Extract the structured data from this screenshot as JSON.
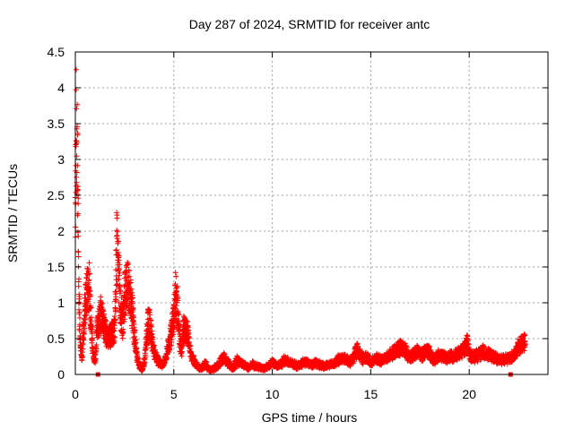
{
  "chart_data": {
    "type": "scatter",
    "title": "Day 287 of 2024, SRMTID for receiver antc",
    "xlabel": "GPS time / hours",
    "ylabel": "SRMTID / TECUs",
    "xlim": [
      0,
      24
    ],
    "ylim": [
      0,
      4.5
    ],
    "xticks": [
      0,
      5,
      10,
      15,
      20
    ],
    "yticks": [
      0,
      0.5,
      1,
      1.5,
      2,
      2.5,
      3,
      3.5,
      4,
      4.5
    ],
    "xtick_labels": [
      "0",
      "5",
      "10",
      "15",
      "20"
    ],
    "ytick_labels": [
      "0",
      "0.5",
      "1",
      "1.5",
      "2",
      "2.5",
      "3",
      "3.5",
      "4",
      "4.5"
    ],
    "grid": true,
    "marker": "plus",
    "series_color": "#ff0000",
    "envelope_x": [
      0.0,
      0.05,
      0.1,
      0.15,
      0.2,
      0.25,
      0.35,
      0.5,
      0.6,
      0.7,
      0.8,
      0.9,
      1.0,
      1.1,
      1.2,
      1.3,
      1.4,
      1.5,
      1.6,
      1.7,
      1.8,
      1.9,
      2.0,
      2.1,
      2.2,
      2.3,
      2.4,
      2.5,
      2.6,
      2.7,
      2.8,
      2.9,
      3.0,
      3.1,
      3.2,
      3.3,
      3.4,
      3.5,
      3.6,
      3.7,
      3.8,
      3.9,
      4.0,
      4.1,
      4.2,
      4.3,
      4.4,
      4.5,
      4.6,
      4.7,
      4.8,
      4.9,
      5.0,
      5.1,
      5.2,
      5.3,
      5.4,
      5.5,
      5.6,
      5.7,
      5.8,
      5.9,
      6.0,
      6.1,
      6.2,
      6.3,
      6.4,
      6.5,
      6.6,
      6.8,
      7.0,
      7.2,
      7.5,
      7.8,
      8.0,
      8.2,
      8.5,
      8.8,
      9.0,
      9.3,
      9.6,
      10.0,
      10.3,
      10.6,
      11.0,
      11.3,
      11.6,
      12.0,
      12.3,
      12.6,
      13.0,
      13.3,
      13.6,
      14.0,
      14.3,
      14.6,
      14.8,
      15.0,
      15.3,
      15.6,
      16.0,
      16.3,
      16.6,
      17.0,
      17.3,
      17.6,
      17.9,
      18.2,
      18.5,
      18.8,
      19.1,
      19.4,
      19.7,
      19.9,
      20.1,
      20.4,
      20.7,
      21.0,
      21.3,
      21.6,
      21.9,
      22.1,
      22.3,
      22.5,
      22.7,
      22.85
    ],
    "envelope_y": [
      3.2,
      4.4,
      4.2,
      2.3,
      1.2,
      0.6,
      0.3,
      1.3,
      1.5,
      1.62,
      1.0,
      0.35,
      0.25,
      0.8,
      0.95,
      1.1,
      1.0,
      0.8,
      0.7,
      0.65,
      0.7,
      0.75,
      0.8,
      2.3,
      1.8,
      1.2,
      0.9,
      1.4,
      1.65,
      1.5,
      1.4,
      1.1,
      0.7,
      0.4,
      0.2,
      0.12,
      0.1,
      0.2,
      0.6,
      1.0,
      0.85,
      0.6,
      0.4,
      0.3,
      0.25,
      0.2,
      0.18,
      0.2,
      0.3,
      0.5,
      0.6,
      0.85,
      1.0,
      1.5,
      1.2,
      0.6,
      0.45,
      0.85,
      0.8,
      0.75,
      0.5,
      0.3,
      0.25,
      0.2,
      0.15,
      0.12,
      0.12,
      0.15,
      0.2,
      0.08,
      0.1,
      0.15,
      0.3,
      0.2,
      0.1,
      0.25,
      0.18,
      0.12,
      0.18,
      0.14,
      0.1,
      0.22,
      0.15,
      0.25,
      0.2,
      0.15,
      0.22,
      0.18,
      0.2,
      0.15,
      0.18,
      0.25,
      0.3,
      0.22,
      0.45,
      0.28,
      0.3,
      0.22,
      0.28,
      0.25,
      0.35,
      0.45,
      0.5,
      0.3,
      0.4,
      0.35,
      0.45,
      0.25,
      0.35,
      0.3,
      0.32,
      0.35,
      0.45,
      0.55,
      0.3,
      0.35,
      0.4,
      0.35,
      0.3,
      0.25,
      0.28,
      0.3,
      0.35,
      0.5,
      0.55,
      0.6
    ]
  }
}
